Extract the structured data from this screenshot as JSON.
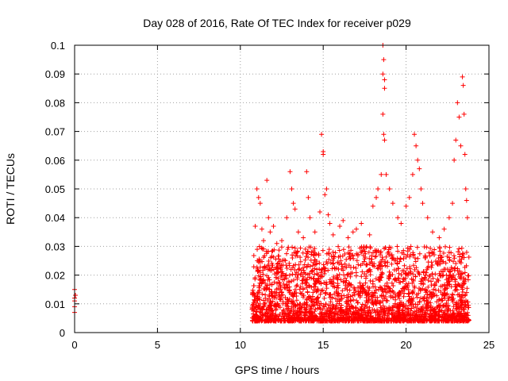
{
  "chart_data": {
    "type": "scatter",
    "title": "Day 028 of 2016, Rate Of TEC Index for receiver p029",
    "xlabel": "GPS time / hours",
    "ylabel": "ROTI / TECUs",
    "xlim": [
      0,
      25
    ],
    "ylim": [
      0,
      0.1
    ],
    "x_ticks": [
      "0",
      "5",
      "10",
      "15",
      "20",
      "25"
    ],
    "y_ticks": [
      "0",
      "0.01",
      "0.02",
      "0.03",
      "0.04",
      "0.05",
      "0.06",
      "0.07",
      "0.08",
      "0.09",
      "0.1"
    ],
    "grid": true,
    "marker": "+",
    "series_color": "#ff0000",
    "dense_band": {
      "x_range": [
        10.7,
        23.8
      ],
      "y_range": [
        0.004,
        0.03
      ]
    },
    "series": [
      {
        "points": [
          [
            0.0,
            0.007
          ],
          [
            0.0,
            0.009
          ],
          [
            0.0,
            0.011
          ],
          [
            0.0,
            0.012
          ],
          [
            0.05,
            0.013
          ],
          [
            0.0,
            0.015
          ],
          [
            10.9,
            0.037
          ],
          [
            11.0,
            0.05
          ],
          [
            11.1,
            0.047
          ],
          [
            11.2,
            0.045
          ],
          [
            11.3,
            0.036
          ],
          [
            11.4,
            0.032
          ],
          [
            11.6,
            0.053
          ],
          [
            11.7,
            0.04
          ],
          [
            11.8,
            0.035
          ],
          [
            12.0,
            0.037
          ],
          [
            12.2,
            0.031
          ],
          [
            12.5,
            0.032
          ],
          [
            12.8,
            0.04
          ],
          [
            13.0,
            0.056
          ],
          [
            13.1,
            0.05
          ],
          [
            13.2,
            0.045
          ],
          [
            13.3,
            0.043
          ],
          [
            13.5,
            0.035
          ],
          [
            13.8,
            0.033
          ],
          [
            14.0,
            0.056
          ],
          [
            14.1,
            0.047
          ],
          [
            14.2,
            0.04
          ],
          [
            14.5,
            0.035
          ],
          [
            14.8,
            0.042
          ],
          [
            14.9,
            0.069
          ],
          [
            15.0,
            0.063
          ],
          [
            15.0,
            0.062
          ],
          [
            15.1,
            0.048
          ],
          [
            15.2,
            0.05
          ],
          [
            15.3,
            0.041
          ],
          [
            15.4,
            0.038
          ],
          [
            15.6,
            0.034
          ],
          [
            16.0,
            0.037
          ],
          [
            16.2,
            0.039
          ],
          [
            16.5,
            0.033
          ],
          [
            16.8,
            0.035
          ],
          [
            17.0,
            0.036
          ],
          [
            17.3,
            0.038
          ],
          [
            17.8,
            0.034
          ],
          [
            18.0,
            0.044
          ],
          [
            18.2,
            0.047
          ],
          [
            18.3,
            0.05
          ],
          [
            18.5,
            0.055
          ],
          [
            18.6,
            0.1
          ],
          [
            18.65,
            0.095
          ],
          [
            18.6,
            0.09
          ],
          [
            18.7,
            0.088
          ],
          [
            18.7,
            0.085
          ],
          [
            18.6,
            0.076
          ],
          [
            18.65,
            0.069
          ],
          [
            18.7,
            0.067
          ],
          [
            18.8,
            0.055
          ],
          [
            19.0,
            0.05
          ],
          [
            19.2,
            0.045
          ],
          [
            19.5,
            0.04
          ],
          [
            19.7,
            0.038
          ],
          [
            20.0,
            0.044
          ],
          [
            20.2,
            0.047
          ],
          [
            20.4,
            0.055
          ],
          [
            20.5,
            0.069
          ],
          [
            20.6,
            0.065
          ],
          [
            20.7,
            0.06
          ],
          [
            20.8,
            0.057
          ],
          [
            20.9,
            0.05
          ],
          [
            21.0,
            0.045
          ],
          [
            21.3,
            0.04
          ],
          [
            21.6,
            0.035
          ],
          [
            22.0,
            0.033
          ],
          [
            22.3,
            0.036
          ],
          [
            22.6,
            0.04
          ],
          [
            22.8,
            0.045
          ],
          [
            22.9,
            0.06
          ],
          [
            23.0,
            0.067
          ],
          [
            23.1,
            0.08
          ],
          [
            23.2,
            0.075
          ],
          [
            23.3,
            0.065
          ],
          [
            23.4,
            0.089
          ],
          [
            23.45,
            0.086
          ],
          [
            23.5,
            0.076
          ],
          [
            23.55,
            0.062
          ],
          [
            23.6,
            0.05
          ],
          [
            23.65,
            0.046
          ],
          [
            23.7,
            0.04
          ]
        ]
      }
    ]
  }
}
